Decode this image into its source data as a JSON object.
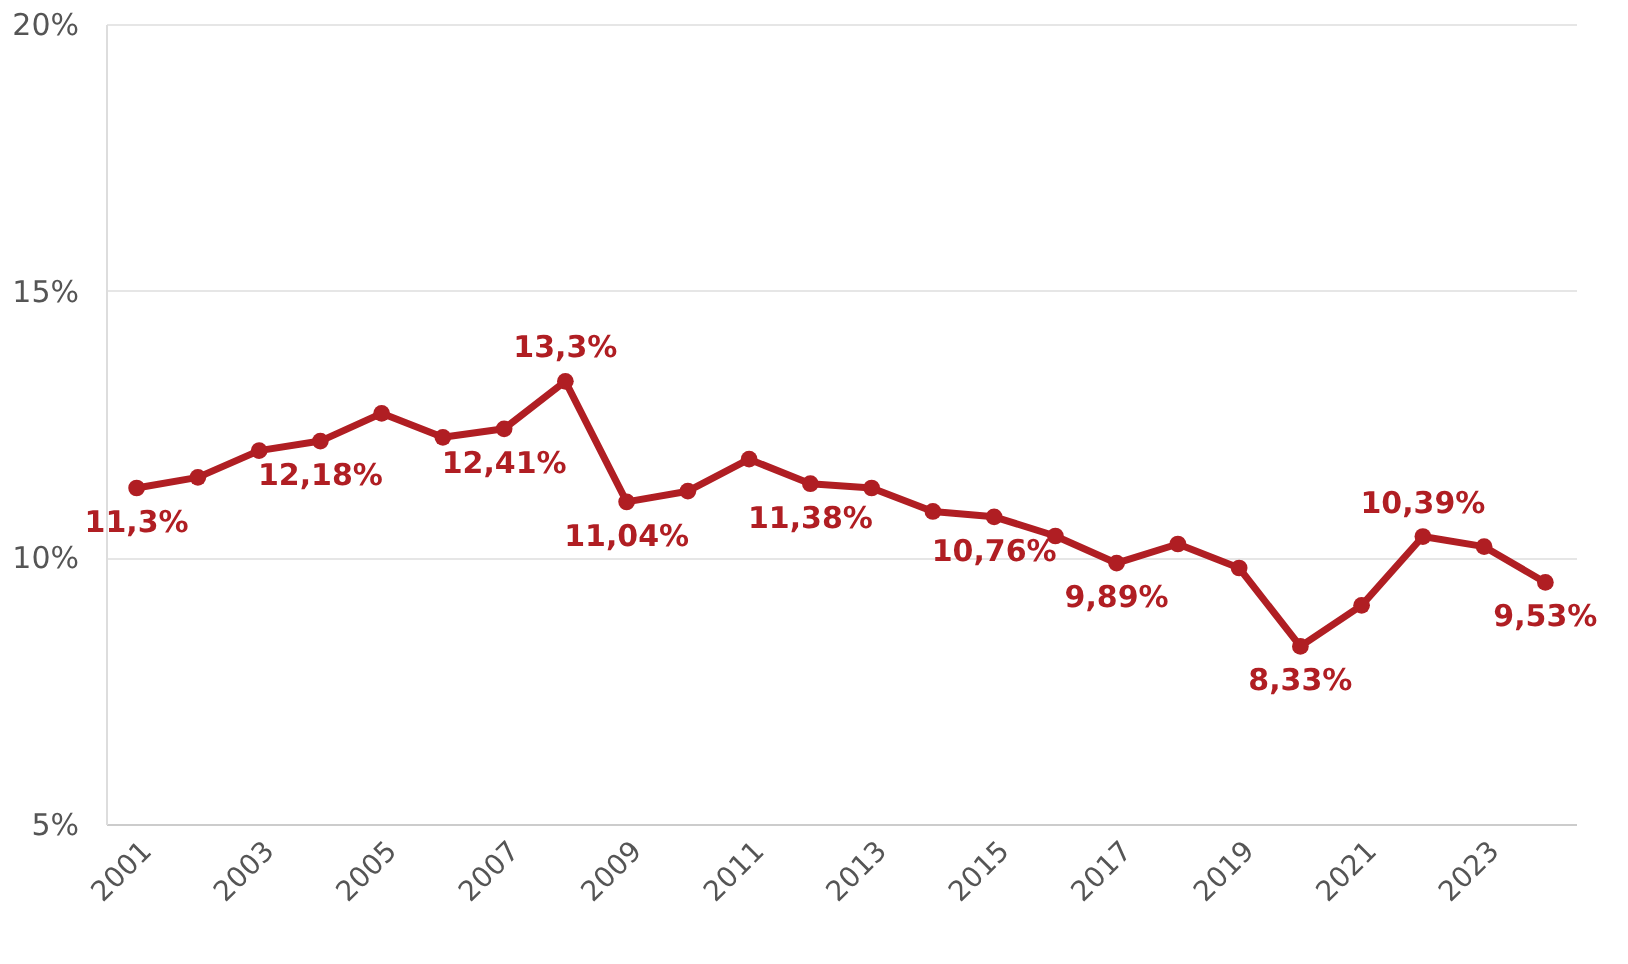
{
  "chart_data": {
    "type": "line",
    "categories": [
      "2001",
      null,
      "2003",
      null,
      "2005",
      null,
      "2007",
      null,
      "2009",
      null,
      "2011",
      null,
      "2013",
      null,
      "2015",
      null,
      "2017",
      null,
      "2019",
      null,
      "2021",
      null,
      "2023",
      null
    ],
    "series": [
      {
        "color": "#b01e23",
        "values": [
          11.3,
          11.5,
          12.0,
          12.18,
          12.7,
          12.25,
          12.41,
          13.3,
          11.04,
          11.24,
          11.84,
          11.38,
          11.3,
          10.86,
          10.76,
          10.4,
          9.89,
          10.25,
          9.8,
          8.33,
          9.1,
          10.39,
          10.2,
          9.53
        ],
        "value_labels": [
          "11,3%",
          null,
          null,
          "12,18%",
          null,
          null,
          "12,41%",
          "13,3%",
          "11,04%",
          null,
          null,
          "11,38%",
          null,
          null,
          "10,76%",
          null,
          "9,89%",
          null,
          null,
          "8,33%",
          null,
          "10,39%",
          null,
          "9,53%"
        ]
      }
    ],
    "ylim": [
      5,
      20
    ],
    "yticks": [
      {
        "value": 5,
        "label": "5%"
      },
      {
        "value": 10,
        "label": "10%"
      },
      {
        "value": 15,
        "label": "15%"
      },
      {
        "value": 20,
        "label": "20%"
      }
    ],
    "grid": "y",
    "marker": "circle",
    "line_style": "solid"
  }
}
